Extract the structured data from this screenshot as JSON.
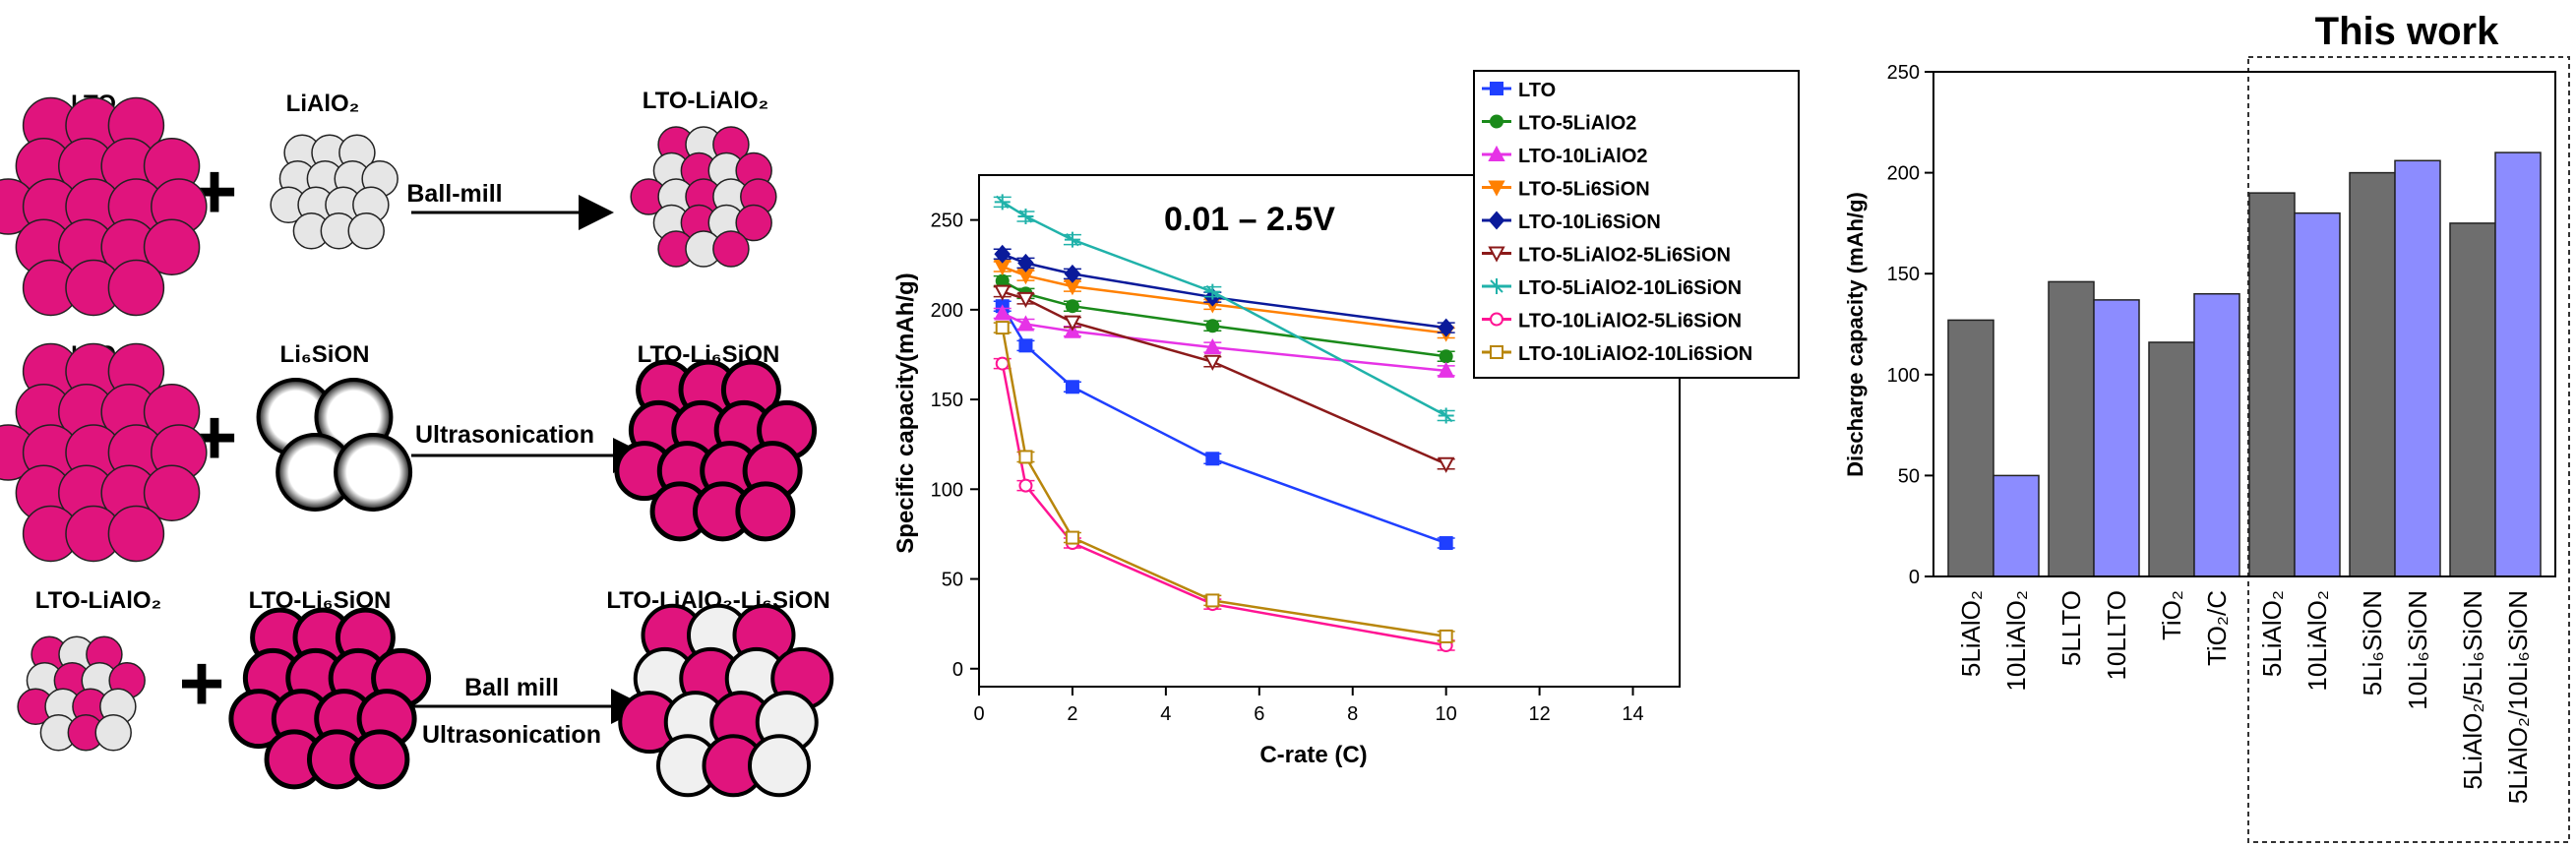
{
  "schematic": {
    "rows": [
      {
        "left_label": "LTO",
        "right_label": "LiAlO₂",
        "process": [
          "Ball-mill"
        ],
        "product": "LTO-LiAlO₂"
      },
      {
        "left_label": "LTO",
        "right_label": "Li₆SiON",
        "process": [
          "Ultrasonication"
        ],
        "product": "LTO-Li₆SiON"
      },
      {
        "left_label": "LTO-LiAlO₂",
        "right_label": "LTO-Li₆SiON",
        "process": [
          "Ball mill",
          "Ultrasonication"
        ],
        "product": "LTO-LiAlO₂-Li₆SiON"
      }
    ],
    "plus": "+"
  },
  "chart_data": [
    {
      "type": "line",
      "annotation": "0.01 – 2.5V",
      "xlabel": "C-rate (C)",
      "ylabel": "Specific capacity(mAh/g)",
      "xlim": [
        0,
        15
      ],
      "ylim": [
        -10,
        275
      ],
      "xticks": [
        0,
        2,
        4,
        6,
        8,
        10,
        12,
        14
      ],
      "yticks": [
        0,
        50,
        100,
        150,
        200,
        250
      ],
      "x": [
        0.5,
        1,
        2,
        5,
        10
      ],
      "legend_position": "right",
      "series": [
        {
          "name": "LTO",
          "color": "#1f3fff",
          "marker": "square",
          "values": [
            202,
            180,
            157,
            117,
            70
          ]
        },
        {
          "name": "LTO-5LiAlO2",
          "color": "#1a8a1a",
          "marker": "circle",
          "values": [
            216,
            209,
            202,
            191,
            174
          ]
        },
        {
          "name": "LTO-10LiAlO2",
          "color": "#e633e6",
          "marker": "triangle-up",
          "values": [
            198,
            192,
            188,
            179,
            166
          ]
        },
        {
          "name": "LTO-5Li6SiON",
          "color": "#ff8000",
          "marker": "triangle-down",
          "values": [
            224,
            219,
            213,
            203,
            187
          ]
        },
        {
          "name": "LTO-10Li6SiON",
          "color": "#0a1a9a",
          "marker": "diamond",
          "values": [
            231,
            226,
            220,
            207,
            190
          ]
        },
        {
          "name": "LTO-5LiAlO2-5Li6SiON",
          "color": "#8b1a1a",
          "marker": "open-triangle-down",
          "values": [
            210,
            206,
            193,
            171,
            114
          ]
        },
        {
          "name": "LTO-5LiAlO2-10Li6SiON",
          "color": "#20b2aa",
          "marker": "star",
          "values": [
            260,
            252,
            239,
            210,
            141
          ]
        },
        {
          "name": "LTO-10LiAlO2-5Li6SiON",
          "color": "#ff1493",
          "marker": "open-circle",
          "values": [
            170,
            102,
            70,
            36,
            13
          ]
        },
        {
          "name": "LTO-10LiAlO2-10Li6SiON",
          "color": "#b8860b",
          "marker": "open-square",
          "values": [
            190,
            118,
            73,
            38,
            18
          ]
        }
      ]
    },
    {
      "type": "bar",
      "title": "This work",
      "ylabel": "Discharge capacity (mAh/g)",
      "ylim": [
        0,
        250
      ],
      "yticks": [
        0,
        50,
        100,
        150,
        200,
        250
      ],
      "categories": [
        "5LiAlO₂",
        "10LiAlO₂",
        "5LLTO",
        "10LLTO",
        "TiO₂",
        "TiO₂/C",
        "5LiAlO₂",
        "10LiAlO₂",
        "5Li₆SiON",
        "10Li₆SiON",
        "5LiAlO₂/5Li₆SiON",
        "5LiAlO₂/10Li₆SiON"
      ],
      "values": [
        127,
        50,
        146,
        137,
        116,
        140,
        190,
        180,
        200,
        206,
        175,
        210
      ],
      "colors": [
        "#6e6e6e",
        "#8c8cff",
        "#6e6e6e",
        "#8c8cff",
        "#6e6e6e",
        "#8c8cff",
        "#6e6e6e",
        "#8c8cff",
        "#6e6e6e",
        "#8c8cff",
        "#6e6e6e",
        "#8c8cff"
      ],
      "highlight": "last six bars boxed as this work"
    }
  ]
}
